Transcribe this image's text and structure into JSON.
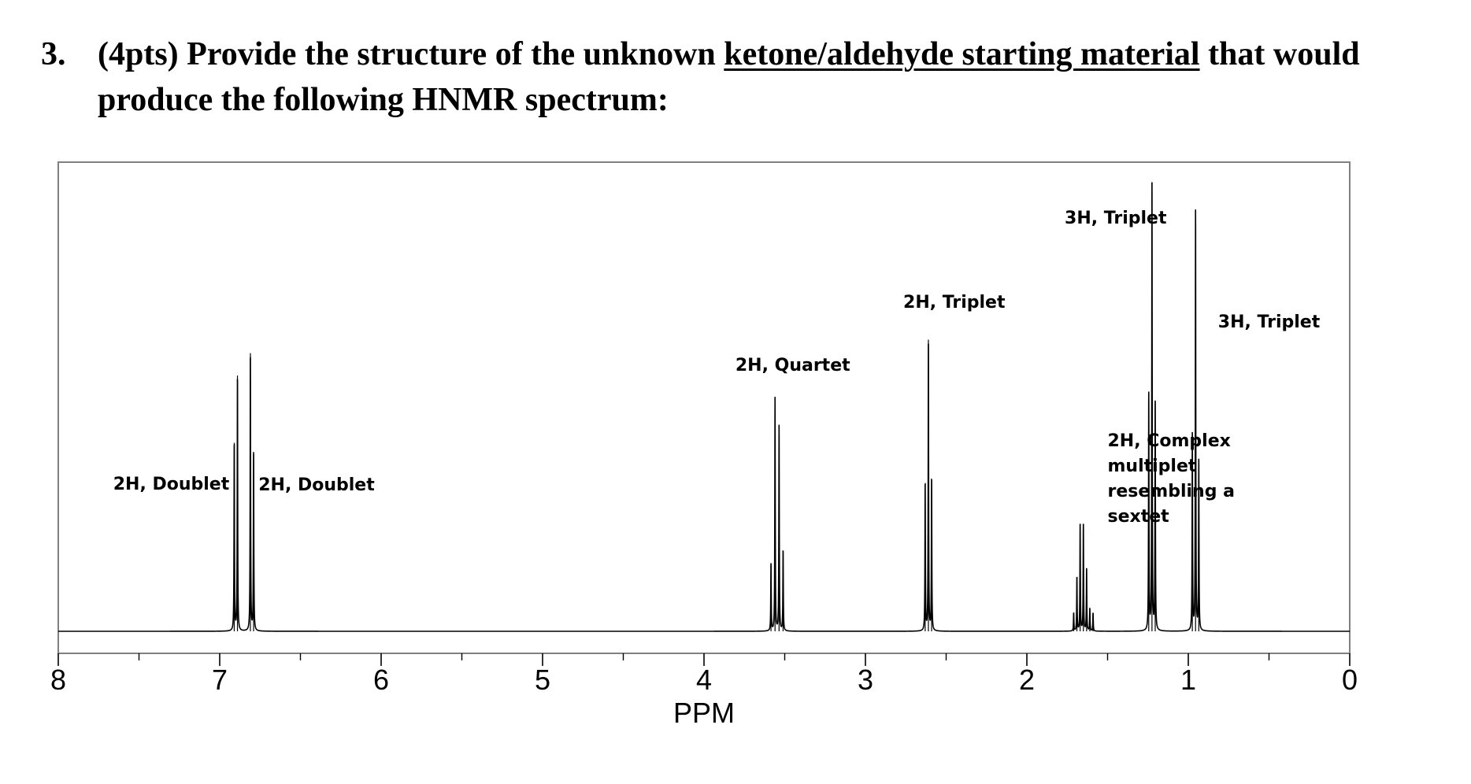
{
  "question": {
    "number": "3.",
    "text_before": "(4pts) Provide the structure of the unknown ",
    "text_underlined": "ketone/aldehyde starting material",
    "text_after": " that would produce the following HNMR spectrum:"
  },
  "chart_data": {
    "type": "line",
    "title": "",
    "xlabel": "PPM",
    "ylabel": "",
    "xlim": [
      8,
      0
    ],
    "x_reversed": true,
    "major_ticks": [
      8,
      7,
      6,
      5,
      4,
      3,
      2,
      1,
      0
    ],
    "tick_labels": [
      "8",
      "7",
      "6",
      "5",
      "4",
      "3",
      "2",
      "1",
      "0"
    ],
    "minor_ticks": [
      7.5,
      6.5,
      5.5,
      4.5,
      3.5,
      2.5,
      1.5,
      0.5
    ],
    "grid": false,
    "line_color": "#000000",
    "annotations": [
      {
        "text": "2H, Doublet",
        "ppm": 7.3
      },
      {
        "text": "2H, Doublet",
        "ppm": 6.4
      },
      {
        "text": "2H, Quartet",
        "ppm": 3.45
      },
      {
        "text": "2H, Triplet",
        "ppm": 2.45
      },
      {
        "text": "2H, Complex multiplet resembling a sextet",
        "ppm": 1.5
      },
      {
        "text": "3H, Triplet",
        "ppm": 1.45
      },
      {
        "text": "3H, Triplet",
        "ppm": 0.5
      }
    ],
    "signals": [
      {
        "name": "2H, Doublet",
        "ppm": [
          6.91,
          6.89
        ],
        "rel_height": [
          0.42,
          0.57
        ]
      },
      {
        "name": "2H, Doublet",
        "ppm": [
          6.81,
          6.79
        ],
        "rel_height": [
          0.62,
          0.4
        ]
      },
      {
        "name": "2H, Quartet",
        "ppm": [
          3.585,
          3.56,
          3.535,
          3.51
        ],
        "rel_height": [
          0.15,
          0.52,
          0.46,
          0.18
        ]
      },
      {
        "name": "2H, Triplet",
        "ppm": [
          2.63,
          2.61,
          2.59
        ],
        "rel_height": [
          0.33,
          0.65,
          0.34
        ]
      },
      {
        "name": "2H, Complex multiplet resembling a sextet",
        "ppm": [
          1.71,
          1.69,
          1.67,
          1.65,
          1.63,
          1.61,
          1.59
        ],
        "rel_height": [
          0.04,
          0.12,
          0.24,
          0.24,
          0.14,
          0.05,
          0.04
        ]
      },
      {
        "name": "3H, Triplet",
        "ppm": [
          1.245,
          1.225,
          1.205
        ],
        "rel_height": [
          0.53,
          1.0,
          0.51
        ]
      },
      {
        "name": "3H, Triplet",
        "ppm": [
          0.975,
          0.955,
          0.935
        ],
        "rel_height": [
          0.44,
          0.94,
          0.38
        ]
      }
    ]
  }
}
